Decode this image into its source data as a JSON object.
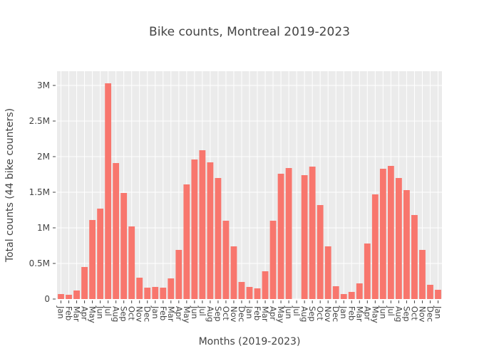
{
  "chart_data": {
    "type": "bar",
    "title": "Bike counts, Montreal 2019-2023",
    "xlabel": "Months (2019-2023)",
    "ylabel": "Total counts (44 bike counters)",
    "ylim": [
      0,
      3200000
    ],
    "y_ticks": [
      0,
      500000,
      1000000,
      1500000,
      2000000,
      2500000,
      3000000
    ],
    "y_tick_labels": [
      "0",
      "0.5M",
      "1M",
      "1.5M",
      "2M",
      "2.5M",
      "3M"
    ],
    "grid": true,
    "legend": false,
    "bar_color": "#F8766D",
    "plot_background": "#EBEBEB",
    "categories": [
      "Jan",
      "Feb",
      "Mar",
      "Apr",
      "May",
      "Jun",
      "Jul",
      "Aug",
      "Sep",
      "Oct",
      "Nov",
      "Dec",
      "Jan",
      "Feb",
      "Mar",
      "Apr",
      "May",
      "Jun",
      "Jul",
      "Aug",
      "Sep",
      "Oct",
      "Nov",
      "Dec",
      "Jan",
      "Feb",
      "Mar",
      "Apr",
      "May",
      "Jun",
      "Jul",
      "Aug",
      "Sep",
      "Oct",
      "Nov",
      "Dec",
      "Jan",
      "Feb",
      "Mar",
      "Apr",
      "May",
      "Jun",
      "Jul",
      "Aug",
      "Sep",
      "Oct",
      "Nov",
      "Dec",
      "Jan"
    ],
    "values": [
      70000,
      60000,
      120000,
      450000,
      1110000,
      1270000,
      3030000,
      1910000,
      1490000,
      1020000,
      300000,
      160000,
      170000,
      160000,
      290000,
      690000,
      1610000,
      1960000,
      2090000,
      1920000,
      1700000,
      1100000,
      740000,
      240000,
      170000,
      150000,
      390000,
      1100000,
      1760000,
      1840000,
      null,
      1740000,
      1860000,
      1320000,
      740000,
      180000,
      70000,
      100000,
      220000,
      780000,
      1470000,
      1830000,
      1870000,
      1700000,
      1530000,
      1180000,
      690000,
      200000,
      130000
    ]
  }
}
